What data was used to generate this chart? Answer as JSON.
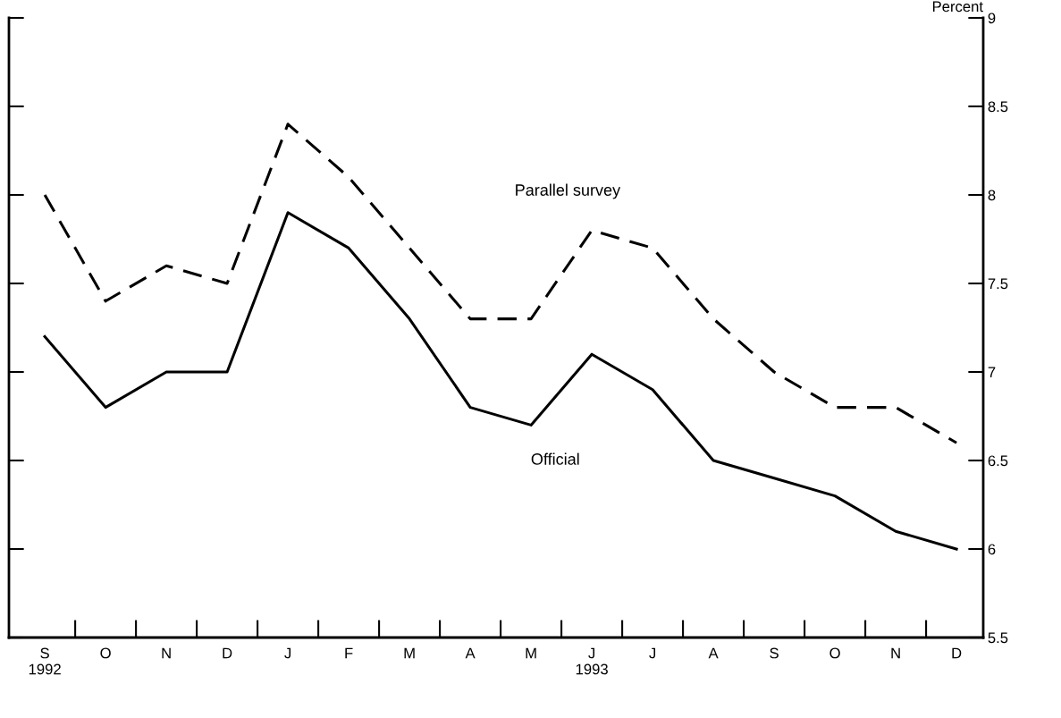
{
  "chart_data": {
    "type": "line",
    "ylabel": "Percent",
    "categories": [
      "S\n1992",
      "O",
      "N",
      "D",
      "J",
      "F",
      "M",
      "A",
      "M",
      "J\n1993",
      "J",
      "A",
      "S",
      "O",
      "N",
      "D"
    ],
    "series": [
      {
        "name": "Parallel survey",
        "color": "#000000",
        "line_style": "dashed",
        "values": [
          8.0,
          7.4,
          7.6,
          7.5,
          8.4,
          8.1,
          7.7,
          7.3,
          7.3,
          7.8,
          7.7,
          7.3,
          7.0,
          6.8,
          6.8,
          6.6
        ]
      },
      {
        "name": "Official",
        "color": "#000000",
        "line_style": "solid",
        "values": [
          7.2,
          6.8,
          7.0,
          7.0,
          7.9,
          7.7,
          7.3,
          6.8,
          6.7,
          7.1,
          6.9,
          6.5,
          6.4,
          6.3,
          6.1,
          6.0
        ]
      }
    ],
    "ylim": [
      5.5,
      9
    ],
    "yticks": [
      5.5,
      6,
      6.5,
      7,
      7.5,
      8,
      8.5,
      9
    ],
    "grid": false,
    "legend": false,
    "marker": "none"
  }
}
